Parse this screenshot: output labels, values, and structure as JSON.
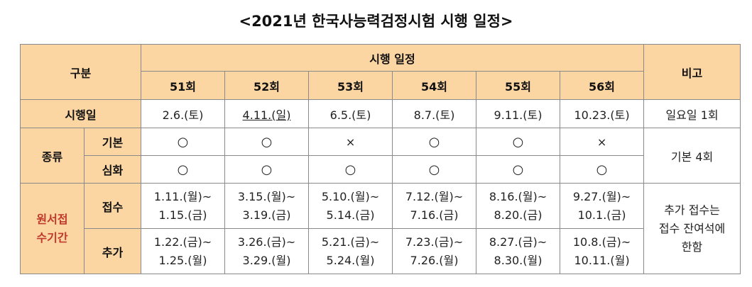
{
  "title": "<2021년 한국사능력검정시험 시행 일정>",
  "headers": {
    "category": "구분",
    "schedule": "시행 일정",
    "remarks": "비고",
    "rounds": [
      "51회",
      "52회",
      "53회",
      "54회",
      "55회",
      "56회"
    ]
  },
  "exam_date": {
    "label": "시행일",
    "dates": [
      "2.6.(토)",
      "4.11.(일)",
      "6.5.(토)",
      "8.7.(토)",
      "9.11.(토)",
      "10.23.(토)"
    ],
    "remark": "일요일 1회"
  },
  "type": {
    "label": "종류",
    "basic": {
      "label": "기본",
      "marks": [
        "○",
        "○",
        "×",
        "○",
        "○",
        "×"
      ]
    },
    "advanced": {
      "label": "심화",
      "marks": [
        "○",
        "○",
        "○",
        "○",
        "○",
        "○"
      ]
    },
    "remark": "기본 4회"
  },
  "application": {
    "label_line1": "원서접",
    "label_line2": "수기간",
    "regular": {
      "label": "접수",
      "periods": [
        [
          "1.11.(월)~",
          "1.15.(금)"
        ],
        [
          "3.15.(월)~",
          "3.19.(금)"
        ],
        [
          "5.10.(월)~",
          "5.14.(금)"
        ],
        [
          "7.12.(월)~",
          "7.16.(금)"
        ],
        [
          "8.16.(월)~",
          "8.20.(금)"
        ],
        [
          "9.27.(월)~",
          "10.1.(금)"
        ]
      ]
    },
    "additional": {
      "label": "추가",
      "periods": [
        [
          "1.22.(금)~",
          "1.25.(월)"
        ],
        [
          "3.26.(금)~",
          "3.29.(월)"
        ],
        [
          "5.21.(금)~",
          "5.24.(월)"
        ],
        [
          "7.23.(금)~",
          "7.26.(월)"
        ],
        [
          "8.27.(금)~",
          "8.30.(월)"
        ],
        [
          "10.8.(금)~",
          "10.11.(월)"
        ]
      ]
    },
    "remark_lines": [
      "추가 접수는",
      "접수 잔여석에",
      "한함"
    ]
  },
  "colors": {
    "header_bg": "#fbd6a3",
    "blue_text": "#2233aa",
    "red_text": "#c0392b",
    "border": "#8a8a8a"
  }
}
